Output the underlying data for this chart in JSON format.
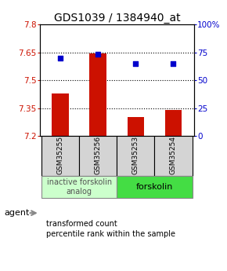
{
  "title": "GDS1039 / 1384940_at",
  "samples": [
    "GSM35255",
    "GSM35256",
    "GSM35253",
    "GSM35254"
  ],
  "bar_values": [
    7.43,
    7.645,
    7.3,
    7.34
  ],
  "scatter_percentiles": [
    70,
    73,
    65,
    65
  ],
  "ylim_left": [
    7.2,
    7.8
  ],
  "ylim_right": [
    0,
    100
  ],
  "yticks_left": [
    7.2,
    7.35,
    7.5,
    7.65,
    7.8
  ],
  "yticks_right": [
    0,
    25,
    50,
    75,
    100
  ],
  "ytick_labels_left": [
    "7.2",
    "7.35",
    "7.5",
    "7.65",
    "7.8"
  ],
  "ytick_labels_right": [
    "0",
    "25",
    "50",
    "75",
    "100%"
  ],
  "hlines": [
    7.35,
    7.5,
    7.65
  ],
  "bar_color": "#cc1100",
  "scatter_color": "#0000cc",
  "bar_bottom": 7.2,
  "group0_label": "inactive forskolin\nanalog",
  "group0_color": "#ccffcc",
  "group1_label": "forskolin",
  "group1_color": "#44dd44",
  "agent_label": "agent",
  "legend_bar_label": "transformed count",
  "legend_scatter_label": "percentile rank within the sample",
  "title_fontsize": 10,
  "tick_fontsize": 7.5,
  "sample_fontsize": 6.5,
  "group_fontsize": 7.0,
  "legend_fontsize": 7.0
}
